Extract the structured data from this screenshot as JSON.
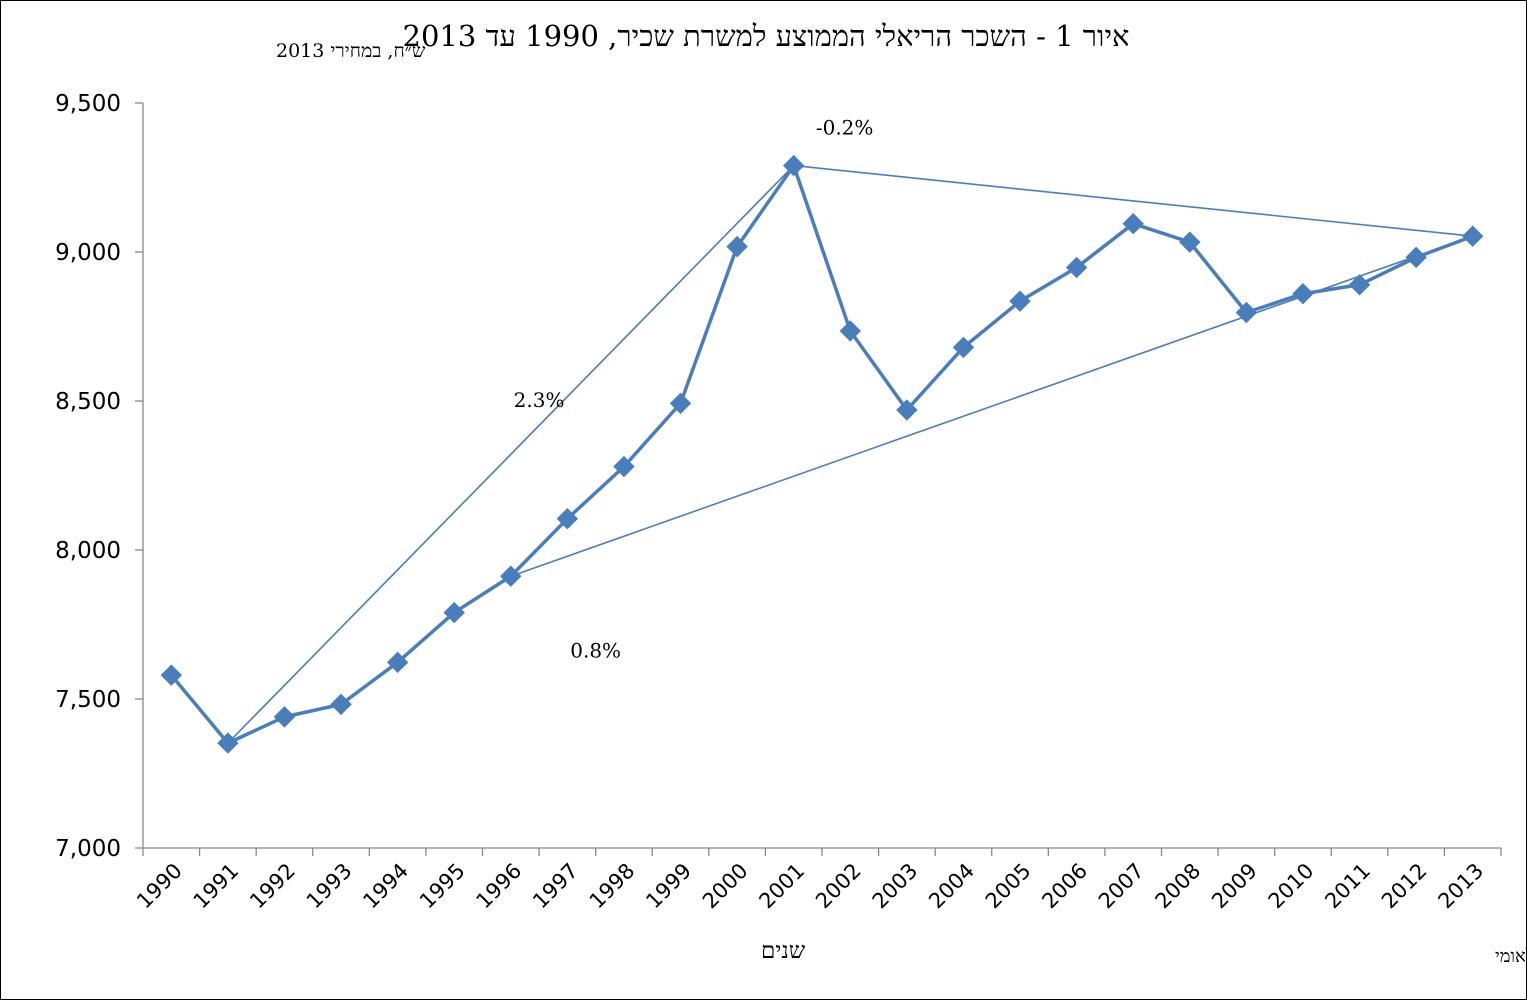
{
  "chart_data": {
    "type": "line",
    "title": "איור 1 - השכר הריאלי הממוצע למשרת שכיר, 1990 עד 2013",
    "units_label": "ש״ח, במחירי 2013",
    "xlabel": "שנים",
    "ylabel": "",
    "source": "המקור : הלשכה המרכזית לסטטיסטיקה על סמך הנתונים של ביטוח לאומי",
    "ylim": [
      7000,
      9500
    ],
    "yticks": [
      7000,
      7500,
      8000,
      8500,
      9000,
      9500
    ],
    "ytick_labels": [
      "7,000",
      "7,500",
      "8,000",
      "8,500",
      "9,000",
      "9,500"
    ],
    "categories": [
      "1990",
      "1991",
      "1992",
      "1993",
      "1994",
      "1995",
      "1996",
      "1997",
      "1998",
      "1999",
      "2000",
      "2001",
      "2002",
      "2003",
      "2004",
      "2005",
      "2006",
      "2007",
      "2008",
      "2009",
      "2010",
      "2011",
      "2012",
      "2013"
    ],
    "series": [
      {
        "values": [
          7580,
          7352,
          7440,
          7482,
          7623,
          7790,
          7912,
          8105,
          8280,
          8492,
          9018,
          9290,
          8735,
          8470,
          8680,
          8835,
          8948,
          9095,
          9033,
          8797,
          8860,
          8890,
          8982,
          9053
        ],
        "color": "#4a7ebb"
      }
    ],
    "trend_lines": [
      {
        "from": "1991",
        "to": "2001",
        "label": "2.3%"
      },
      {
        "from": "1996",
        "to": "2013",
        "label": "0.8%"
      },
      {
        "from": "2001",
        "to": "2013",
        "label": "-0.2%"
      }
    ],
    "grid": false,
    "legend": "none"
  }
}
